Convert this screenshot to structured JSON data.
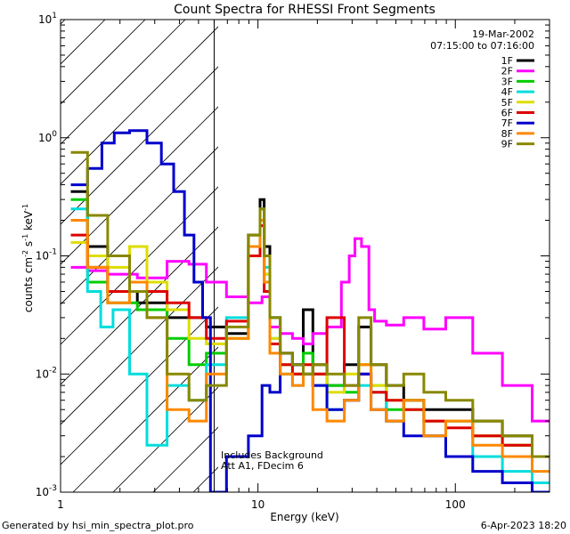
{
  "chart_data": {
    "type": "line",
    "title": "Count Spectra for RHESSI Front Segments",
    "xlabel": "Energy (keV)",
    "ylabel_parts": {
      "counts": "counts cm",
      "exp_neg2": "-2",
      "s": " s",
      "exp_neg1a": "-1",
      "kev": " keV",
      "exp_neg1b": "-1"
    },
    "x_scale": "log",
    "y_scale": "log",
    "xlim": [
      1,
      300
    ],
    "ylim": [
      0.001,
      10
    ],
    "x_ticks": [
      {
        "value": 1,
        "label": "1"
      },
      {
        "value": 10,
        "label": "10"
      },
      {
        "value": 100,
        "label": "100"
      }
    ],
    "y_ticks": [
      {
        "value": 0.001,
        "base": "10",
        "exp": "-3"
      },
      {
        "value": 0.01,
        "base": "10",
        "exp": "-2"
      },
      {
        "value": 0.1,
        "base": "10",
        "exp": "-1"
      },
      {
        "value": 1,
        "base": "10",
        "exp": "0"
      },
      {
        "value": 10,
        "base": "10",
        "exp": "1"
      }
    ],
    "hatched_region_x": [
      1,
      6
    ],
    "date": "19-Mar-2002",
    "time_range": "07:15:00 to 07:16:00",
    "annotations": [
      "Includes Background",
      "Att A1, FDecim  6"
    ],
    "series": [
      {
        "name": "1F",
        "color": "#000000",
        "x": [
          1.25,
          1.5,
          2,
          3,
          4,
          5,
          6,
          8,
          10,
          10.5,
          11,
          12,
          14,
          16,
          18,
          20,
          25,
          30,
          35,
          40,
          50,
          60,
          80,
          100,
          150,
          200,
          300
        ],
        "y": [
          0.35,
          0.12,
          0.05,
          0.04,
          0.03,
          0.03,
          0.025,
          0.022,
          0.15,
          0.3,
          0.12,
          0.03,
          0.015,
          0.012,
          0.035,
          0.012,
          0.008,
          0.012,
          0.025,
          0.012,
          0.008,
          0.006,
          0.005,
          0.005,
          0.004,
          0.003,
          0.002
        ]
      },
      {
        "name": "2F",
        "color": "#ff00ff",
        "x": [
          1.25,
          1.5,
          2,
          3,
          4,
          5,
          6,
          8,
          10,
          11,
          12,
          14,
          16,
          18,
          20,
          25,
          28,
          30,
          32,
          35,
          38,
          40,
          50,
          60,
          80,
          100,
          150,
          200,
          300
        ],
        "y": [
          0.08,
          0.075,
          0.07,
          0.065,
          0.09,
          0.085,
          0.06,
          0.045,
          0.04,
          0.045,
          0.025,
          0.022,
          0.02,
          0.018,
          0.022,
          0.025,
          0.06,
          0.1,
          0.14,
          0.12,
          0.035,
          0.028,
          0.026,
          0.03,
          0.024,
          0.03,
          0.015,
          0.008,
          0.004
        ]
      },
      {
        "name": "3F",
        "color": "#00cc00",
        "x": [
          1.25,
          1.5,
          2,
          3,
          4,
          5,
          6,
          8,
          10,
          10.5,
          11,
          12,
          14,
          16,
          18,
          20,
          25,
          30,
          35,
          40,
          50,
          60,
          80,
          100,
          150,
          200,
          300
        ],
        "y": [
          0.3,
          0.06,
          0.04,
          0.035,
          0.02,
          0.012,
          0.015,
          0.02,
          0.12,
          0.2,
          0.07,
          0.03,
          0.012,
          0.01,
          0.015,
          0.01,
          0.008,
          0.007,
          0.012,
          0.008,
          0.005,
          0.006,
          0.004,
          0.004,
          0.003,
          0.0025,
          0.002
        ]
      },
      {
        "name": "4F",
        "color": "#00dddd",
        "x": [
          1.25,
          1.5,
          1.7,
          2,
          2.5,
          3,
          4,
          5,
          6,
          8,
          10,
          10.5,
          11,
          12,
          14,
          16,
          18,
          20,
          25,
          30,
          35,
          40,
          50,
          60,
          80,
          100,
          150,
          200,
          300
        ],
        "y": [
          0.25,
          0.05,
          0.025,
          0.035,
          0.01,
          0.0025,
          0.008,
          0.006,
          0.012,
          0.03,
          0.1,
          0.25,
          0.08,
          0.02,
          0.01,
          0.008,
          0.01,
          0.008,
          0.005,
          0.006,
          0.008,
          0.007,
          0.004,
          0.005,
          0.003,
          0.004,
          0.002,
          0.0015,
          0.0012
        ]
      },
      {
        "name": "5F",
        "color": "#dddd00",
        "x": [
          1.25,
          1.5,
          2,
          2.5,
          3,
          4,
          5,
          6,
          8,
          10,
          10.5,
          11,
          12,
          14,
          16,
          18,
          20,
          25,
          30,
          35,
          40,
          50,
          60,
          80,
          100,
          150,
          200,
          300
        ],
        "y": [
          0.13,
          0.1,
          0.08,
          0.12,
          0.06,
          0.035,
          0.02,
          0.018,
          0.02,
          0.1,
          0.2,
          0.07,
          0.02,
          0.012,
          0.01,
          0.012,
          0.01,
          0.007,
          0.01,
          0.012,
          0.008,
          0.006,
          0.005,
          0.004,
          0.004,
          0.003,
          0.0025,
          0.002
        ]
      },
      {
        "name": "6F",
        "color": "#dd0000",
        "x": [
          1.25,
          1.5,
          2,
          3,
          4,
          5,
          6,
          8,
          10,
          10.5,
          11,
          12,
          14,
          16,
          18,
          20,
          25,
          30,
          35,
          40,
          50,
          60,
          80,
          100,
          150,
          200,
          300
        ],
        "y": [
          0.15,
          0.08,
          0.05,
          0.05,
          0.04,
          0.03,
          0.02,
          0.028,
          0.1,
          0.18,
          0.05,
          0.018,
          0.012,
          0.01,
          0.012,
          0.01,
          0.03,
          0.008,
          0.01,
          0.007,
          0.006,
          0.005,
          0.004,
          0.0035,
          0.003,
          0.0025,
          0.002
        ]
      },
      {
        "name": "7F",
        "color": "#0000cc",
        "x": [
          1.25,
          1.5,
          1.75,
          2,
          2.5,
          3,
          3.5,
          4,
          4.5,
          5,
          5.5,
          6,
          8,
          10,
          11,
          12,
          14,
          16,
          18,
          20,
          25,
          30,
          35,
          40,
          50,
          60,
          80,
          100,
          150,
          200,
          300
        ],
        "y": [
          0.4,
          0.55,
          0.9,
          1.1,
          1.15,
          0.9,
          0.6,
          0.35,
          0.15,
          0.06,
          0.03,
          0.001,
          0.002,
          0.003,
          0.008,
          0.007,
          0.015,
          0.012,
          0.01,
          0.008,
          0.005,
          0.006,
          0.01,
          0.005,
          0.004,
          0.003,
          0.003,
          0.002,
          0.0015,
          0.0012,
          0.001
        ]
      },
      {
        "name": "8F",
        "color": "#ff8800",
        "x": [
          1.25,
          1.5,
          2,
          2.5,
          3,
          4,
          5,
          6,
          8,
          10,
          10.5,
          11,
          12,
          14,
          16,
          18,
          20,
          25,
          30,
          35,
          40,
          50,
          60,
          80,
          100,
          150,
          200,
          300
        ],
        "y": [
          0.2,
          0.08,
          0.04,
          0.06,
          0.03,
          0.005,
          0.004,
          0.01,
          0.02,
          0.12,
          0.2,
          0.06,
          0.015,
          0.01,
          0.008,
          0.01,
          0.005,
          0.004,
          0.006,
          0.012,
          0.005,
          0.004,
          0.006,
          0.003,
          0.004,
          0.0025,
          0.002,
          0.0015
        ]
      },
      {
        "name": "9F",
        "color": "#888800",
        "x": [
          1.25,
          1.5,
          2,
          2.5,
          3,
          4,
          5,
          6,
          8,
          10,
          10.5,
          11,
          12,
          14,
          16,
          18,
          20,
          25,
          30,
          35,
          40,
          50,
          60,
          80,
          100,
          150,
          200,
          300
        ],
        "y": [
          0.75,
          0.22,
          0.1,
          0.05,
          0.03,
          0.01,
          0.006,
          0.008,
          0.025,
          0.15,
          0.25,
          0.1,
          0.03,
          0.015,
          0.012,
          0.01,
          0.012,
          0.01,
          0.008,
          0.03,
          0.012,
          0.008,
          0.01,
          0.007,
          0.006,
          0.004,
          0.003,
          0.002
        ]
      }
    ]
  },
  "footer": {
    "generated_by": "Generated by hsi_min_spectra_plot.pro",
    "timestamp": "6-Apr-2023 18:20"
  }
}
